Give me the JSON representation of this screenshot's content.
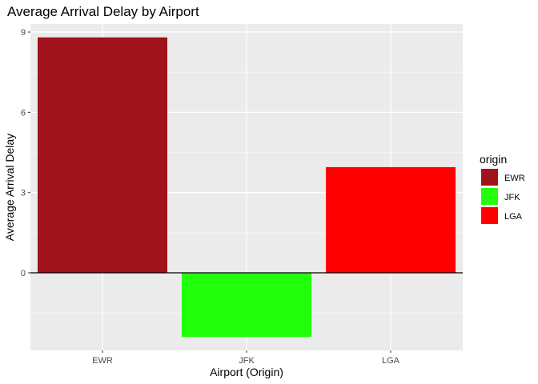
{
  "chart_data": {
    "type": "bar",
    "title": "Average Arrival Delay by Airport",
    "xlabel": "Airport (Origin)",
    "ylabel": "Average Arrival Delay",
    "categories": [
      "EWR",
      "JFK",
      "LGA"
    ],
    "values": [
      8.8,
      -2.4,
      3.95
    ],
    "colors": [
      "#A0121C",
      "#22FF0A",
      "#FF0000"
    ],
    "ylim": [
      -2.9,
      9.3
    ],
    "yticks": [
      0,
      3,
      6,
      9
    ],
    "grid": true,
    "legend": {
      "title": "origin",
      "position": "right",
      "entries": [
        "EWR",
        "JFK",
        "LGA"
      ]
    }
  }
}
